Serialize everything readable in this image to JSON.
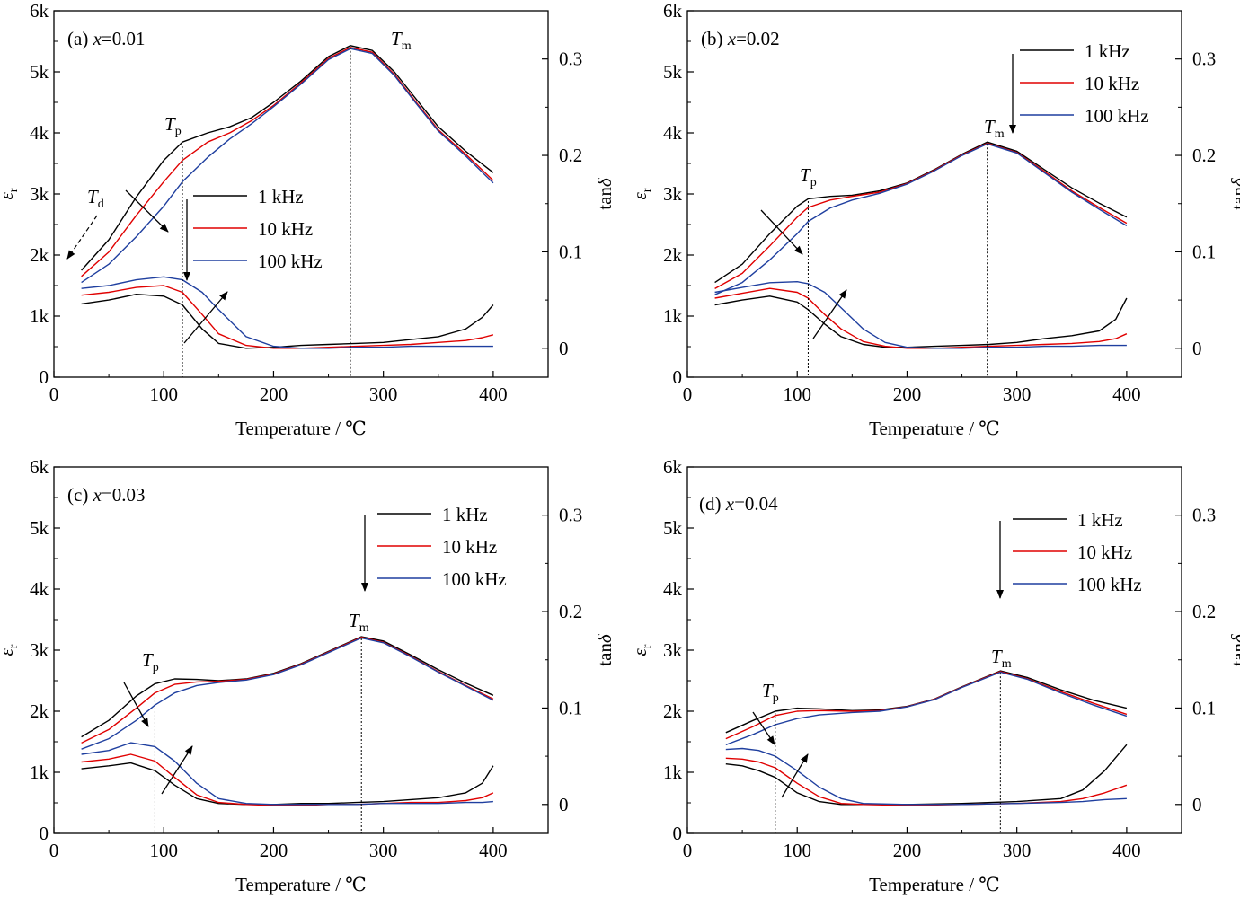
{
  "figure": {
    "x_axis_label": "Temperature / ℃",
    "y_left_label": "ε",
    "y_left_label_sub": "r",
    "y_right_label": "tan",
    "y_right_label_italic": "δ",
    "legend": [
      {
        "name": "1 kHz",
        "color": "#000000"
      },
      {
        "name": "10 kHz",
        "color": "#e00000"
      },
      {
        "name": "100 kHz",
        "color": "#1f3f9f"
      }
    ],
    "annotations": {
      "tm": "T",
      "tm_sub": "m",
      "tp": "T",
      "tp_sub": "p",
      "td": "T",
      "td_sub": "d"
    }
  },
  "chart_data": [
    {
      "type": "line",
      "panel": "(a)",
      "label": "x=0.01",
      "label_prefix": "(a) ",
      "label_var": "x",
      "label_value": "=0.01",
      "xlabel": "Temperature / ℃",
      "ylabel": "εr",
      "y2label": "tanδ",
      "xlim": [
        0,
        450
      ],
      "ylim": [
        0,
        6000
      ],
      "y2lim": [
        -0.03,
        0.35
      ],
      "x_ticks": [
        0,
        100,
        200,
        300,
        400
      ],
      "y_ticks": [
        0,
        1000,
        2000,
        3000,
        4000,
        5000,
        6000
      ],
      "y_tick_labels": [
        "0",
        "1k",
        "2k",
        "3k",
        "4k",
        "5k",
        "6k"
      ],
      "y2_ticks": [
        0,
        0.1,
        0.2,
        0.3
      ],
      "y2_tick_labels": [
        "0",
        "0.1",
        "0.2",
        "0.3"
      ],
      "Tp": 117,
      "Tm": 270,
      "Td": 10,
      "legend_position": "center",
      "permittivity": {
        "x": [
          25,
          50,
          75,
          100,
          117,
          140,
          160,
          180,
          200,
          225,
          250,
          270,
          290,
          310,
          330,
          350,
          375,
          400
        ],
        "series": [
          {
            "name": "1 kHz",
            "values": [
              1750,
              2250,
              2950,
              3550,
              3850,
              4000,
              4100,
              4250,
              4500,
              4850,
              5250,
              5430,
              5350,
              5000,
              4550,
              4100,
              3700,
              3350
            ]
          },
          {
            "name": "10 kHz",
            "values": [
              1650,
              2050,
              2650,
              3200,
              3550,
              3850,
              4000,
              4200,
              4450,
              4820,
              5220,
              5400,
              5320,
              4960,
              4500,
              4050,
              3650,
              3220
            ]
          },
          {
            "name": "100 kHz",
            "values": [
              1550,
              1850,
              2300,
              2800,
              3200,
              3600,
              3900,
              4150,
              4430,
              4800,
              5200,
              5380,
              5300,
              4940,
              4480,
              4030,
              3620,
              3180
            ]
          }
        ]
      },
      "tan_delta": {
        "x": [
          25,
          50,
          75,
          100,
          117,
          135,
          150,
          175,
          200,
          225,
          250,
          275,
          300,
          325,
          350,
          375,
          390,
          400
        ],
        "series": [
          {
            "name": "1 kHz",
            "values": [
              0.046,
              0.05,
              0.056,
              0.054,
              0.045,
              0.02,
              0.005,
              0.0,
              0.001,
              0.003,
              0.004,
              0.005,
              0.006,
              0.009,
              0.012,
              0.02,
              0.032,
              0.045
            ]
          },
          {
            "name": "10 kHz",
            "values": [
              0.055,
              0.058,
              0.063,
              0.065,
              0.058,
              0.035,
              0.015,
              0.003,
              0.0,
              0.0,
              0.001,
              0.002,
              0.003,
              0.004,
              0.006,
              0.008,
              0.011,
              0.014
            ]
          },
          {
            "name": "100 kHz",
            "values": [
              0.062,
              0.065,
              0.071,
              0.074,
              0.071,
              0.058,
              0.04,
              0.012,
              0.002,
              0.0,
              0.0,
              0.001,
              0.001,
              0.002,
              0.002,
              0.002,
              0.002,
              0.002
            ]
          }
        ]
      }
    },
    {
      "type": "line",
      "panel": "(b)",
      "label": "x=0.02",
      "label_prefix": "(b) ",
      "label_var": "x",
      "label_value": "=0.02",
      "xlabel": "Temperature / ℃",
      "ylabel": "εr",
      "y2label": "tanδ",
      "xlim": [
        0,
        450
      ],
      "ylim": [
        0,
        6000
      ],
      "y2lim": [
        -0.03,
        0.35
      ],
      "x_ticks": [
        0,
        100,
        200,
        300,
        400
      ],
      "y_ticks": [
        0,
        1000,
        2000,
        3000,
        4000,
        5000,
        6000
      ],
      "y_tick_labels": [
        "0",
        "1k",
        "2k",
        "3k",
        "4k",
        "5k",
        "6k"
      ],
      "y2_ticks": [
        0,
        0.1,
        0.2,
        0.3
      ],
      "y2_tick_labels": [
        "0",
        "0.1",
        "0.2",
        "0.3"
      ],
      "Tp": 110,
      "Tm": 273,
      "legend_position": "top-right",
      "permittivity": {
        "x": [
          25,
          50,
          75,
          100,
          110,
          130,
          150,
          175,
          200,
          225,
          250,
          273,
          300,
          325,
          350,
          375,
          400
        ],
        "series": [
          {
            "name": "1 kHz",
            "values": [
              1550,
              1850,
              2350,
              2800,
              2920,
              2960,
              2980,
              3050,
              3180,
              3400,
              3650,
              3850,
              3700,
              3400,
              3100,
              2850,
              2620
            ]
          },
          {
            "name": "10 kHz",
            "values": [
              1450,
              1700,
              2150,
              2620,
              2780,
              2900,
              2960,
              3030,
              3170,
              3390,
              3640,
              3830,
              3680,
              3370,
              3050,
              2780,
              2520
            ]
          },
          {
            "name": "100 kHz",
            "values": [
              1350,
              1550,
              1920,
              2350,
              2550,
              2770,
              2900,
              3010,
              3160,
              3380,
              3630,
              3820,
              3670,
              3350,
              3030,
              2750,
              2480
            ]
          }
        ]
      },
      "tan_delta": {
        "x": [
          25,
          50,
          75,
          100,
          110,
          125,
          140,
          160,
          180,
          200,
          225,
          250,
          275,
          300,
          325,
          350,
          375,
          390,
          400
        ],
        "series": [
          {
            "name": "1 kHz",
            "values": [
              0.045,
              0.05,
              0.054,
              0.048,
              0.04,
              0.025,
              0.012,
              0.004,
              0.001,
              0.001,
              0.002,
              0.003,
              0.004,
              0.006,
              0.01,
              0.013,
              0.018,
              0.03,
              0.052
            ]
          },
          {
            "name": "10 kHz",
            "values": [
              0.052,
              0.057,
              0.062,
              0.058,
              0.052,
              0.035,
              0.02,
              0.007,
              0.002,
              0.0,
              0.0,
              0.001,
              0.002,
              0.003,
              0.004,
              0.005,
              0.007,
              0.01,
              0.015
            ]
          },
          {
            "name": "100 kHz",
            "values": [
              0.058,
              0.063,
              0.068,
              0.069,
              0.067,
              0.058,
              0.042,
              0.02,
              0.006,
              0.001,
              0.0,
              0.0,
              0.001,
              0.001,
              0.002,
              0.002,
              0.003,
              0.003,
              0.003
            ]
          }
        ]
      }
    },
    {
      "type": "line",
      "panel": "(c)",
      "label": "x=0.03",
      "label_prefix": "(c) ",
      "label_var": "x",
      "label_value": "=0.03",
      "xlabel": "Temperature / ℃",
      "ylabel": "εr",
      "y2label": "tanδ",
      "xlim": [
        0,
        450
      ],
      "ylim": [
        0,
        6000
      ],
      "y2lim": [
        -0.03,
        0.35
      ],
      "x_ticks": [
        0,
        100,
        200,
        300,
        400
      ],
      "y_ticks": [
        0,
        1000,
        2000,
        3000,
        4000,
        5000,
        6000
      ],
      "y_tick_labels": [
        "0",
        "1k",
        "2k",
        "3k",
        "4k",
        "5k",
        "6k"
      ],
      "y2_ticks": [
        0,
        0.1,
        0.2,
        0.3
      ],
      "y2_tick_labels": [
        "0",
        "0.1",
        "0.2",
        "0.3"
      ],
      "Tp": 92,
      "Tm": 280,
      "legend_position": "top-right",
      "permittivity": {
        "x": [
          25,
          50,
          75,
          92,
          110,
          130,
          150,
          175,
          200,
          225,
          250,
          280,
          300,
          325,
          350,
          375,
          400
        ],
        "series": [
          {
            "name": "1 kHz",
            "values": [
              1580,
              1850,
              2250,
              2450,
              2530,
              2520,
              2500,
              2530,
              2620,
              2780,
              2980,
              3220,
              3150,
              2920,
              2680,
              2460,
              2260
            ]
          },
          {
            "name": "10 kHz",
            "values": [
              1480,
              1700,
              2050,
              2300,
              2440,
              2480,
              2490,
              2520,
              2610,
              2770,
              2970,
              3210,
              3130,
              2900,
              2650,
              2420,
              2200
            ]
          },
          {
            "name": "100 kHz",
            "values": [
              1380,
              1550,
              1850,
              2100,
              2300,
              2420,
              2470,
              2510,
              2600,
              2760,
              2960,
              3200,
              3120,
              2890,
              2640,
              2410,
              2180
            ]
          }
        ]
      },
      "tan_delta": {
        "x": [
          25,
          50,
          70,
          92,
          110,
          130,
          150,
          175,
          200,
          225,
          250,
          275,
          300,
          325,
          350,
          375,
          390,
          400
        ],
        "series": [
          {
            "name": "1 kHz",
            "values": [
              0.037,
              0.04,
              0.043,
              0.035,
              0.02,
              0.006,
              0.001,
              0.0,
              0.0,
              0.001,
              0.001,
              0.002,
              0.003,
              0.005,
              0.007,
              0.012,
              0.022,
              0.04
            ]
          },
          {
            "name": "10 kHz",
            "values": [
              0.044,
              0.047,
              0.052,
              0.045,
              0.028,
              0.01,
              0.002,
              0.0,
              -0.001,
              -0.001,
              0.0,
              0.0,
              0.001,
              0.002,
              0.002,
              0.004,
              0.007,
              0.012
            ]
          },
          {
            "name": "100 kHz",
            "values": [
              0.052,
              0.056,
              0.064,
              0.06,
              0.045,
              0.022,
              0.006,
              0.001,
              0.0,
              0.0,
              0.0,
              0.0,
              0.001,
              0.001,
              0.001,
              0.002,
              0.002,
              0.003
            ]
          }
        ]
      }
    },
    {
      "type": "line",
      "panel": "(d)",
      "label": "x=0.04",
      "label_prefix": "(d) ",
      "label_var": "x",
      "label_value": "=0.04",
      "xlabel": "Temperature / ℃",
      "ylabel": "εr",
      "y2label": "tanδ",
      "xlim": [
        0,
        450
      ],
      "ylim": [
        0,
        6000
      ],
      "y2lim": [
        -0.03,
        0.35
      ],
      "x_ticks": [
        0,
        100,
        200,
        300,
        400
      ],
      "y_ticks": [
        0,
        1000,
        2000,
        3000,
        4000,
        5000,
        6000
      ],
      "y_tick_labels": [
        "0",
        "1k",
        "2k",
        "3k",
        "4k",
        "5k",
        "6k"
      ],
      "y2_ticks": [
        0,
        0.1,
        0.2,
        0.3
      ],
      "y2_tick_labels": [
        "0",
        "0.1",
        "0.2",
        "0.3"
      ],
      "Tp": 80,
      "Tm": 285,
      "legend_position": "top-right",
      "permittivity": {
        "x": [
          35,
          60,
          80,
          100,
          120,
          150,
          175,
          200,
          225,
          250,
          285,
          310,
          340,
          370,
          400
        ],
        "series": [
          {
            "name": "1 kHz",
            "values": [
              1650,
              1850,
              2000,
              2050,
              2040,
              2010,
              2020,
              2080,
              2200,
              2400,
              2660,
              2550,
              2350,
              2180,
              2050
            ]
          },
          {
            "name": "10 kHz",
            "values": [
              1550,
              1750,
              1930,
              2000,
              2010,
              2000,
              2010,
              2075,
              2195,
              2395,
              2650,
              2530,
              2320,
              2130,
              1950
            ]
          },
          {
            "name": "100 kHz",
            "values": [
              1450,
              1620,
              1780,
              1880,
              1940,
              1980,
              2000,
              2070,
              2190,
              2390,
              2640,
              2520,
              2300,
              2100,
              1920
            ]
          }
        ]
      },
      "tan_delta": {
        "x": [
          35,
          50,
          65,
          80,
          100,
          120,
          140,
          160,
          200,
          250,
          300,
          340,
          360,
          380,
          400
        ],
        "series": [
          {
            "name": "1 kHz",
            "values": [
              0.042,
              0.04,
              0.035,
              0.028,
              0.012,
              0.003,
              0.0,
              0.0,
              0.0,
              0.001,
              0.003,
              0.006,
              0.015,
              0.035,
              0.062
            ]
          },
          {
            "name": "10 kHz",
            "values": [
              0.048,
              0.047,
              0.044,
              0.038,
              0.022,
              0.008,
              0.001,
              0.0,
              -0.001,
              0.0,
              0.001,
              0.003,
              0.006,
              0.012,
              0.02
            ]
          },
          {
            "name": "100 kHz",
            "values": [
              0.057,
              0.058,
              0.056,
              0.05,
              0.035,
              0.018,
              0.006,
              0.001,
              0.0,
              0.0,
              0.001,
              0.002,
              0.003,
              0.005,
              0.006
            ]
          }
        ]
      }
    }
  ]
}
